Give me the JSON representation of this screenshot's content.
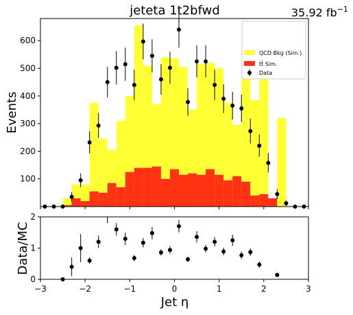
{
  "header": {
    "title": "jeteta  1t2bfwd",
    "lumi_value": "35.92 fb",
    "lumi_exp": "−1"
  },
  "colors": {
    "qcd": "#ffff33",
    "ttbar": "#ff3311",
    "data": "#000000"
  },
  "chart_data": [
    {
      "type": "bar",
      "panel": "main",
      "ylabel": "Events",
      "xlim": [
        -3,
        3
      ],
      "ylim": [
        0,
        680
      ],
      "x_ticks": [
        -3,
        -2,
        -1,
        0,
        1,
        2,
        3
      ],
      "x_tick_labels": [
        "",
        "",
        "",
        "",
        "",
        "",
        ""
      ],
      "y_ticks": [
        100,
        200,
        300,
        400,
        500,
        600
      ],
      "y_tick_labels": [
        "100",
        "200",
        "300",
        "400",
        "500",
        "600"
      ],
      "bin_edges": [
        -2.9,
        -2.7,
        -2.5,
        -2.3,
        -2.1,
        -1.9,
        -1.7,
        -1.5,
        -1.3,
        -1.1,
        -0.9,
        -0.7,
        -0.5,
        -0.3,
        -0.1,
        0.1,
        0.3,
        0.5,
        0.7,
        0.9,
        1.1,
        1.3,
        1.5,
        1.7,
        1.9,
        2.1,
        2.3,
        2.5,
        2.7,
        2.9
      ],
      "legend": {
        "position": "top-right",
        "entries": [
          "QCD Bkg (Sim.)",
          "tt̄ Sim.",
          "Data"
        ]
      },
      "series": [
        {
          "name": "tt̄ Sim.",
          "kind": "stack",
          "values": [
            0,
            0,
            5,
            30,
            20,
            55,
            50,
            85,
            70,
            125,
            140,
            140,
            145,
            100,
            135,
            115,
            120,
            115,
            135,
            115,
            95,
            110,
            90,
            40,
            45,
            30,
            0,
            0,
            0
          ]
        },
        {
          "name": "QCD Bkg (Sim.)",
          "kind": "stack",
          "values": [
            0,
            0,
            25,
            50,
            60,
            320,
            195,
            120,
            240,
            275,
            515,
            370,
            225,
            440,
            400,
            390,
            230,
            400,
            385,
            385,
            280,
            185,
            380,
            345,
            425,
            0,
            320,
            0,
            0
          ]
        },
        {
          "name": "Data",
          "kind": "points",
          "x": [
            -2.9,
            -2.7,
            -2.5,
            -2.3,
            -2.1,
            -1.9,
            -1.7,
            -1.5,
            -1.3,
            -1.1,
            -0.9,
            -0.7,
            -0.5,
            -0.3,
            -0.1,
            0.1,
            0.3,
            0.5,
            0.7,
            0.9,
            1.1,
            1.3,
            1.5,
            1.7,
            1.9,
            2.1,
            2.3,
            2.5,
            2.7,
            2.9
          ],
          "y": [
            0,
            0,
            0,
            35,
            95,
            232,
            293,
            450,
            502,
            515,
            440,
            597,
            545,
            460,
            502,
            640,
            378,
            525,
            525,
            440,
            390,
            365,
            355,
            273,
            220,
            158,
            45,
            12,
            0,
            0
          ],
          "yerr": [
            0,
            0,
            0,
            18,
            25,
            40,
            45,
            55,
            60,
            60,
            55,
            65,
            60,
            55,
            58,
            65,
            50,
            58,
            58,
            55,
            52,
            50,
            50,
            45,
            40,
            35,
            18,
            10,
            0,
            0
          ]
        }
      ]
    },
    {
      "type": "scatter",
      "panel": "ratio",
      "xlabel": "Jet η",
      "ylabel": "Data/MC",
      "xlim": [
        -3,
        3
      ],
      "ylim": [
        0,
        2
      ],
      "x_ticks": [
        -3,
        -2,
        -1,
        0,
        1,
        2,
        3
      ],
      "x_tick_labels": [
        "−3",
        "−2",
        "−1",
        "0",
        "1",
        "2",
        "3"
      ],
      "y_ticks": [
        0,
        1,
        2
      ],
      "y_tick_labels": [
        "0",
        "1",
        "2"
      ],
      "series": [
        {
          "name": "Data/MC",
          "x": [
            -2.5,
            -2.3,
            -2.1,
            -1.9,
            -1.7,
            -1.5,
            -1.3,
            -1.1,
            -0.9,
            -0.7,
            -0.5,
            -0.3,
            -0.1,
            0.1,
            0.3,
            0.5,
            0.7,
            0.9,
            1.1,
            1.3,
            1.5,
            1.7,
            1.9,
            2.3
          ],
          "y": [
            0.0,
            0.4,
            1.0,
            0.6,
            1.2,
            2.05,
            1.6,
            1.3,
            0.68,
            1.17,
            1.48,
            0.86,
            0.94,
            1.7,
            0.64,
            1.36,
            0.98,
            1.2,
            0.89,
            1.25,
            0.77,
            0.87,
            0.47,
            0.14
          ],
          "yerr": [
            0.03,
            0.3,
            0.45,
            0.1,
            0.2,
            0.25,
            0.2,
            0.2,
            0.1,
            0.15,
            0.2,
            0.1,
            0.12,
            0.2,
            0.08,
            0.18,
            0.12,
            0.15,
            0.12,
            0.18,
            0.12,
            0.12,
            0.1,
            0.05
          ]
        }
      ]
    }
  ]
}
